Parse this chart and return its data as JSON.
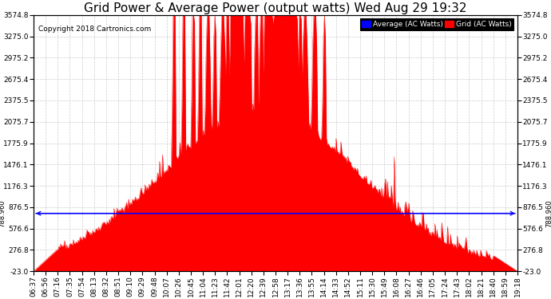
{
  "title": "Grid Power & Average Power (output watts) Wed Aug 29 19:32",
  "copyright": "Copyright 2018 Cartronics.com",
  "legend_avg": "Average (AC Watts)",
  "legend_grid": "Grid (AC Watts)",
  "avg_value": 788.96,
  "ylim_min": -23.0,
  "ylim_max": 3574.8,
  "yticks": [
    3574.8,
    3275.0,
    2975.2,
    2675.4,
    2375.5,
    2075.7,
    1775.9,
    1476.1,
    1176.3,
    876.5,
    576.6,
    276.8,
    -23.0
  ],
  "grid_color": "#cccccc",
  "fill_color": "#ff0000",
  "line_color": "#ff0000",
  "avg_line_color": "#0000ff",
  "background_color": "#ffffff",
  "title_fontsize": 11,
  "tick_fontsize": 6.5,
  "copyright_fontsize": 6.5,
  "xtick_labels": [
    "06:37",
    "06:56",
    "07:16",
    "07:35",
    "07:54",
    "08:13",
    "08:32",
    "08:51",
    "09:10",
    "09:29",
    "09:48",
    "10:07",
    "10:26",
    "10:45",
    "11:04",
    "11:23",
    "11:42",
    "12:01",
    "12:20",
    "12:39",
    "12:58",
    "13:17",
    "13:36",
    "13:55",
    "14:14",
    "14:33",
    "14:52",
    "15:11",
    "15:30",
    "15:49",
    "16:08",
    "16:27",
    "16:46",
    "17:05",
    "17:24",
    "17:43",
    "18:02",
    "18:21",
    "18:40",
    "18:59",
    "19:18"
  ]
}
